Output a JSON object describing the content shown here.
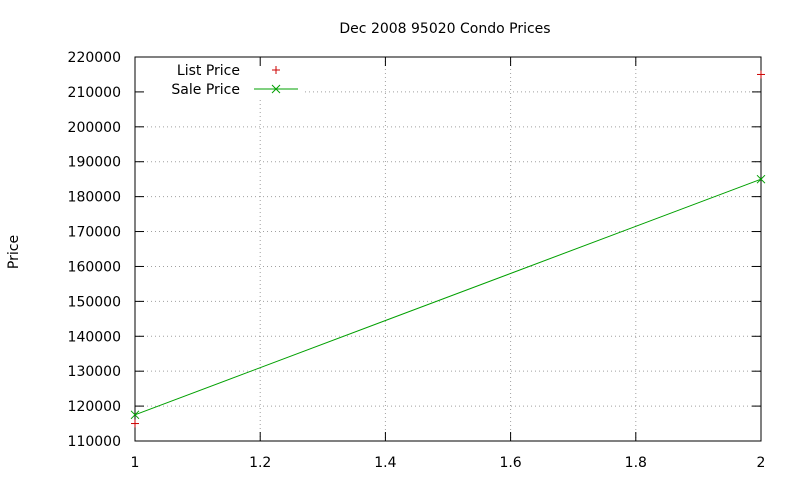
{
  "chart_data": {
    "type": "line",
    "title": "Dec 2008 95020 Condo Prices",
    "xlabel": "",
    "ylabel": "Price",
    "xlim": [
      1,
      2
    ],
    "ylim": [
      110000,
      220000
    ],
    "x_ticks": [
      "1",
      "1.2",
      "1.4",
      "1.6",
      "1.8",
      "2"
    ],
    "y_ticks": [
      "110000",
      "120000",
      "130000",
      "140000",
      "150000",
      "160000",
      "170000",
      "180000",
      "190000",
      "200000",
      "210000",
      "220000"
    ],
    "grid": true,
    "legend_position": "top-left",
    "series": [
      {
        "name": "List Price",
        "style": "points",
        "marker": "plus",
        "color": "#cc0000",
        "x": [
          1,
          2
        ],
        "y": [
          115000,
          215000
        ]
      },
      {
        "name": "Sale Price",
        "style": "linespoints",
        "marker": "cross",
        "color": "#00a000",
        "x": [
          1,
          2
        ],
        "y": [
          117500,
          185000
        ]
      }
    ]
  }
}
